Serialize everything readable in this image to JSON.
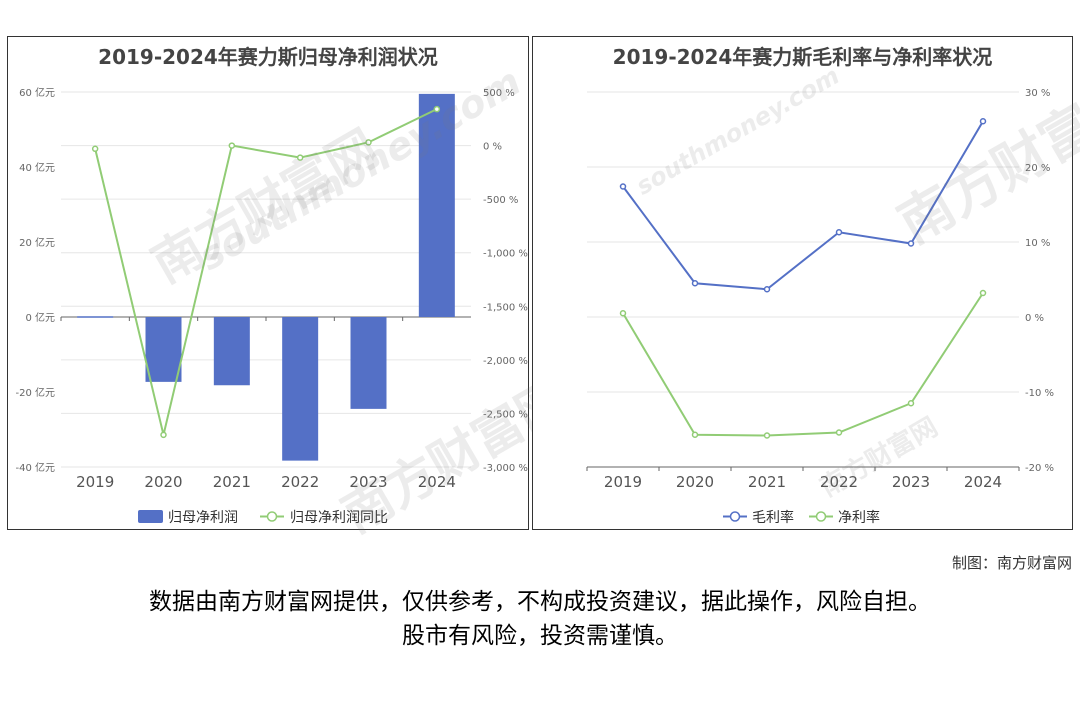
{
  "charts": [
    {
      "title": "2019-2024年赛力斯归母净利润状况",
      "categories": [
        "2019",
        "2020",
        "2021",
        "2022",
        "2023",
        "2024"
      ],
      "left_ticks": [
        "60 亿元",
        "40 亿元",
        "20 亿元",
        "0 亿元",
        "-20 亿元",
        "-40 亿元"
      ],
      "right_ticks": [
        "500 %",
        "0 %",
        "-500 %",
        "-1,000 %",
        "-1,500 %",
        "-2,000 %",
        "-2,500 %",
        "-3,000 %"
      ],
      "legend": [
        "归母净利润",
        "归母净利润同比"
      ],
      "colors": {
        "bar": "#5470c6",
        "line": "#91cc75"
      }
    },
    {
      "title": "2019-2024年赛力斯毛利率与净利率状况",
      "categories": [
        "2019",
        "2020",
        "2021",
        "2022",
        "2023",
        "2024"
      ],
      "right_ticks": [
        "30 %",
        "20 %",
        "10 %",
        "0 %",
        "-10 %",
        "-20 %"
      ],
      "legend": [
        "毛利率",
        "净利率"
      ],
      "colors": {
        "line1": "#5470c6",
        "line2": "#91cc75"
      }
    }
  ],
  "chart_data": [
    {
      "type": "bar",
      "title": "2019-2024年赛力斯归母净利润状况",
      "categories": [
        "2019",
        "2020",
        "2021",
        "2022",
        "2023",
        "2024"
      ],
      "series": [
        {
          "name": "归母净利润",
          "type": "bar",
          "axis": "left",
          "unit": "亿元",
          "values": [
            0.2,
            -17.3,
            -18.2,
            -38.3,
            -24.5,
            59.5
          ]
        },
        {
          "name": "归母净利润同比",
          "type": "line",
          "axis": "right",
          "unit": "%",
          "values": [
            -30,
            -2700,
            0,
            -112,
            30,
            340
          ]
        }
      ],
      "ylim_left": [
        -40,
        60
      ],
      "ylim_right": [
        -3000,
        500
      ],
      "legend_position": "bottom"
    },
    {
      "type": "line",
      "title": "2019-2024年赛力斯毛利率与净利率状况",
      "categories": [
        "2019",
        "2020",
        "2021",
        "2022",
        "2023",
        "2024"
      ],
      "series": [
        {
          "name": "毛利率",
          "unit": "%",
          "values": [
            17.4,
            4.5,
            3.7,
            11.3,
            9.8,
            26.1
          ]
        },
        {
          "name": "净利率",
          "unit": "%",
          "values": [
            0.5,
            -15.7,
            -15.8,
            -15.4,
            -11.5,
            3.2
          ]
        }
      ],
      "ylim": [
        -20,
        30
      ],
      "legend_position": "bottom"
    }
  ],
  "watermark": {
    "cn": "南方财富网",
    "en": "southmoney.com"
  },
  "credit": "制图：南方财富网",
  "disclaimer": [
    "数据由南方财富网提供，仅供参考，不构成投资建议，据此操作，风险自担。",
    "股市有风险，投资需谨慎。"
  ]
}
